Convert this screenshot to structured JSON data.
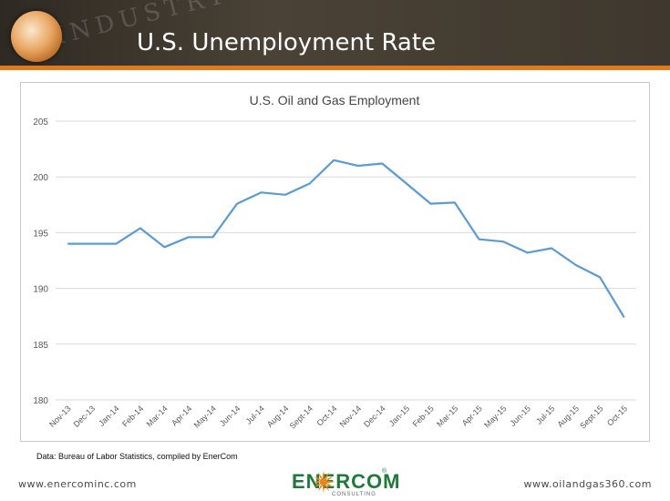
{
  "slide": {
    "title": "U.S. Unemployment Rate",
    "watermark_text": "INDUSTRY",
    "source_note": "Data: Bureau of Labor Statistics, compiled by EnerCom",
    "footer_left": "www.enercominc.com",
    "footer_right": "www.oilandgas360.com",
    "logo": {
      "name": "ENERCOM",
      "subtitle": "CONSULTING",
      "registered": "®"
    }
  },
  "colors": {
    "banner": "#3f382e",
    "stripe": "#e07a1c",
    "series_line": "#5b9bd5",
    "grid": "#d9d9d9",
    "axis_text": "#595959",
    "logo_green": "#1f7a3a",
    "logo_orange": "#e8861c"
  },
  "chart_data": {
    "type": "line",
    "title": "U.S. Oil and Gas Employment",
    "xlabel": "",
    "ylabel": "",
    "ylim": [
      180,
      205
    ],
    "yticks": [
      180,
      185,
      190,
      195,
      200,
      205
    ],
    "grid": true,
    "legend": "none",
    "categories": [
      "Nov-13",
      "Dec-13",
      "Jan-14",
      "Feb-14",
      "Mar-14",
      "Apr-14",
      "May-14",
      "Jun-14",
      "Jul-14",
      "Aug-14",
      "Sept-14",
      "Oct-14",
      "Nov-14",
      "Dec-14",
      "Jan-15",
      "Feb-15",
      "Mar-15",
      "Apr-15",
      "May-15",
      "Jun-15",
      "Jul-15",
      "Aug-15",
      "Sept-15",
      "Oct-15"
    ],
    "series": [
      {
        "values": [
          194.0,
          194.0,
          194.0,
          195.4,
          193.7,
          194.6,
          194.6,
          197.6,
          198.6,
          198.4,
          199.4,
          201.5,
          201.0,
          201.2,
          199.4,
          197.6,
          197.7,
          194.4,
          194.2,
          193.2,
          193.6,
          192.1,
          191.0,
          187.4
        ]
      }
    ]
  }
}
